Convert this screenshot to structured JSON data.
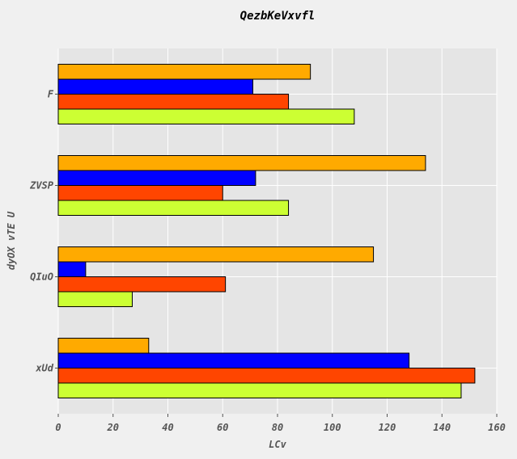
{
  "chart_data": {
    "type": "bar",
    "orientation": "horizontal",
    "title": "QezbKeVxvfl",
    "xlabel": "LCv",
    "ylabel": "dyOX vTE U",
    "categories": [
      "xUd",
      "QIuO",
      "ZVSP",
      "F"
    ],
    "series": [
      {
        "color": "#ccff33",
        "values": [
          147,
          27,
          84,
          108
        ]
      },
      {
        "color": "#ff4500",
        "values": [
          152,
          61,
          60,
          84
        ]
      },
      {
        "color": "#0000ff",
        "values": [
          128,
          10,
          72,
          71
        ]
      },
      {
        "color": "#ffaa00",
        "values": [
          33,
          115,
          134,
          92
        ]
      }
    ],
    "xlim": [
      0,
      160
    ],
    "xticks": [
      0,
      20,
      40,
      60,
      80,
      100,
      120,
      140,
      160
    ],
    "grid": true
  }
}
